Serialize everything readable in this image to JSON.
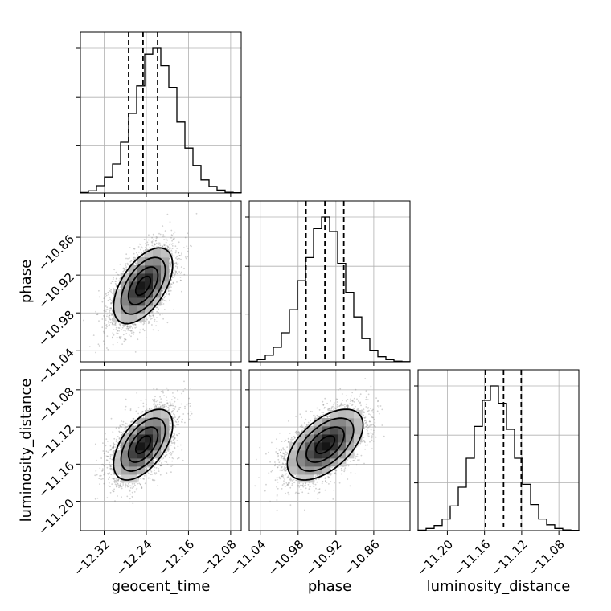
{
  "chart_data": {
    "type": "corner",
    "parameters": [
      "geocent_time",
      "phase",
      "luminosity_distance"
    ],
    "axes": {
      "geocent_time": {
        "label": "geocent_time",
        "range": [
          -12.365,
          -12.06
        ],
        "ticks": [
          -12.32,
          -12.24,
          -12.16,
          -12.08
        ],
        "tick_labels": [
          "−12.32",
          "−12.24",
          "−12.16",
          "−12.08"
        ]
      },
      "phase": {
        "label": "phase",
        "range": [
          -11.0575,
          -10.8025
        ],
        "ticks": [
          -11.04,
          -10.98,
          -10.92,
          -10.86
        ],
        "tick_labels": [
          "−11.04",
          "−10.98",
          "−10.92",
          "−10.86"
        ]
      },
      "luminosity_distance": {
        "label": "luminosity_distance",
        "range": [
          -11.2315,
          -11.0585
        ],
        "ticks": [
          -11.2,
          -11.16,
          -11.12,
          -11.08
        ],
        "tick_labels": [
          "−11.20",
          "−11.16",
          "−11.12",
          "−11.08"
        ]
      }
    },
    "histograms": {
      "geocent_time": {
        "bins": 20,
        "counts": [
          0.3,
          1.5,
          5,
          11,
          20,
          35,
          55,
          74,
          96,
          100,
          88,
          73,
          49,
          31,
          19,
          9,
          4.5,
          2,
          0.5,
          0.2
        ],
        "quantiles": [
          -12.2735,
          -12.2462,
          -12.2185
        ]
      },
      "phase": {
        "bins": 20,
        "counts": [
          0.3,
          1.5,
          4.5,
          10,
          20,
          36,
          56,
          72,
          92,
          100,
          90,
          68,
          48,
          31,
          16,
          8,
          3.5,
          1.5,
          0.4,
          0.1
        ],
        "quantiles": [
          -10.9675,
          -10.9375,
          -10.9075
        ]
      },
      "luminosity_distance": {
        "bins": 20,
        "counts": [
          0.3,
          1.5,
          3.5,
          8,
          17,
          30,
          50,
          72,
          90,
          100,
          88,
          70,
          50,
          32,
          18,
          8,
          4,
          1.5,
          0.5,
          0.2
        ],
        "quantiles": [
          -11.159,
          -11.1395,
          -11.1205
        ]
      }
    },
    "joint": [
      {
        "x": "geocent_time",
        "y": "phase",
        "mean": [
          -12.246,
          -10.937
        ],
        "std": [
          0.028,
          0.03
        ],
        "corr": 0.55,
        "points": 4200
      },
      {
        "x": "geocent_time",
        "y": "luminosity_distance",
        "mean": [
          -12.246,
          -11.139
        ],
        "std": [
          0.028,
          0.019
        ],
        "corr": 0.55,
        "points": 4200
      },
      {
        "x": "phase",
        "y": "luminosity_distance",
        "mean": [
          -10.937,
          -11.139
        ],
        "std": [
          0.03,
          0.019
        ],
        "corr": 0.55,
        "points": 4200
      }
    ],
    "contour_levels": [
      0.118,
      0.393,
      0.675,
      0.865
    ],
    "grid": true,
    "colors": {
      "line": "#000000",
      "grid": "#b0b0b0",
      "scatter": "#7a7a7a"
    }
  }
}
